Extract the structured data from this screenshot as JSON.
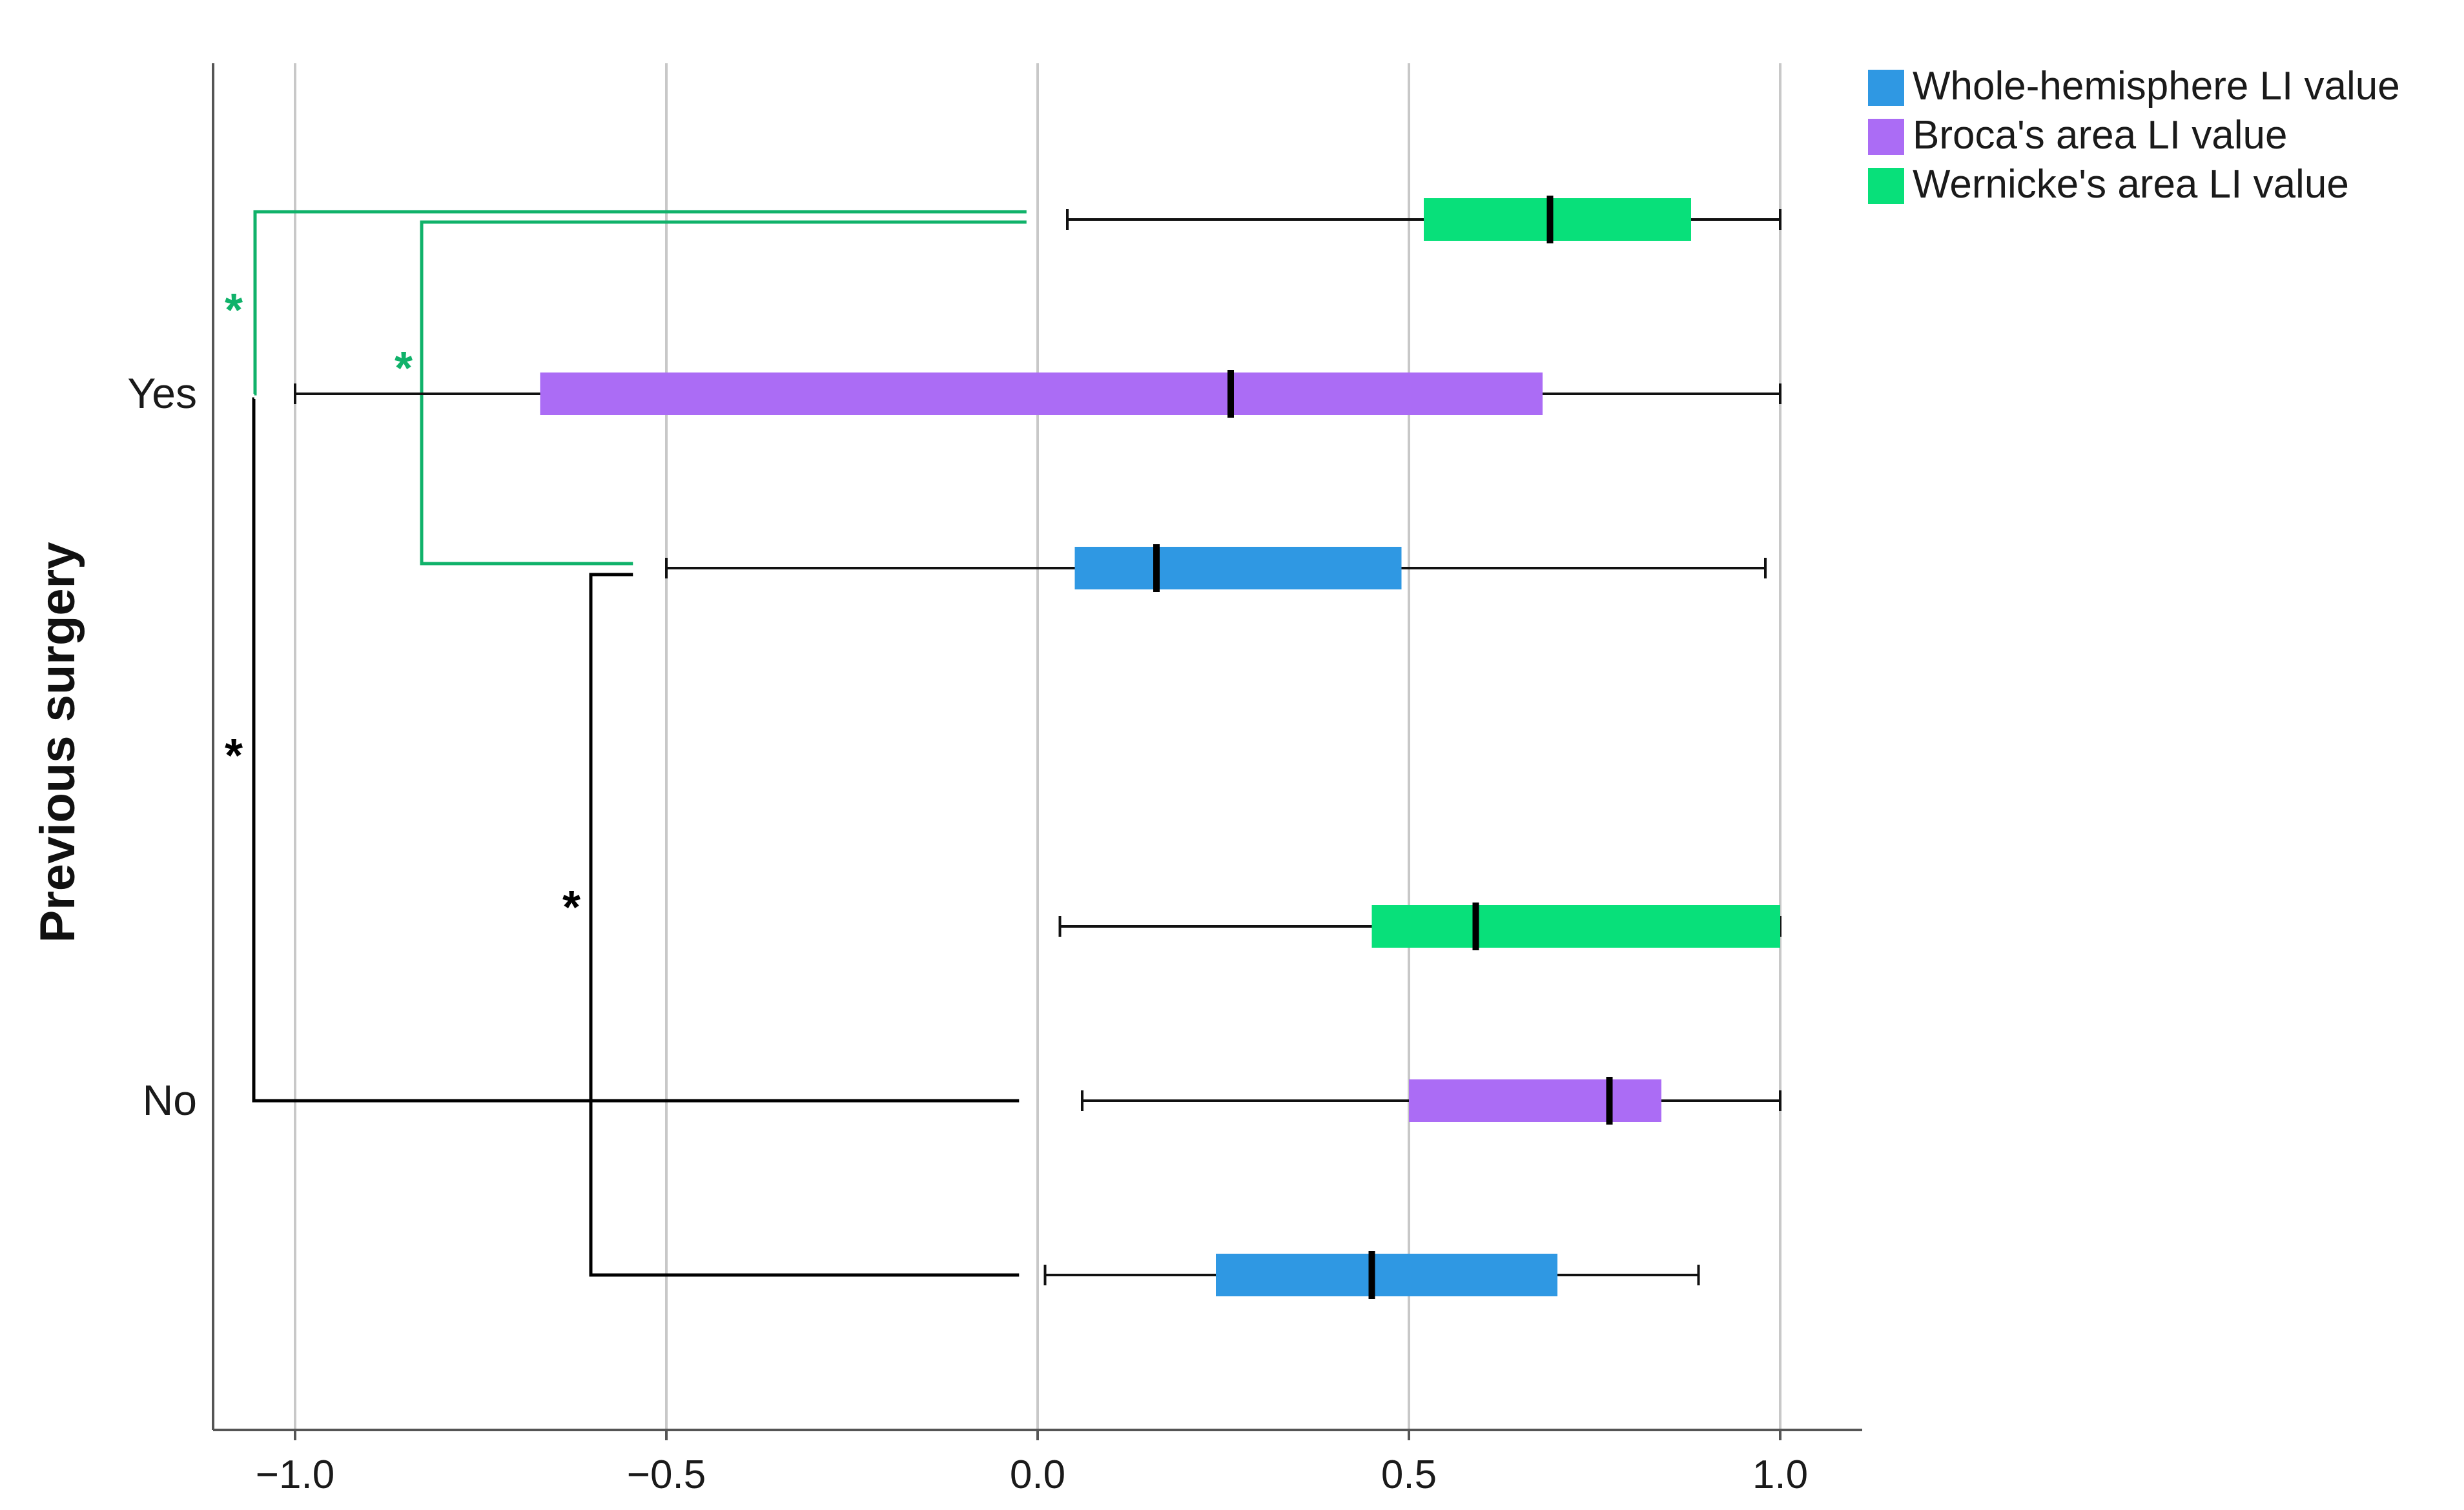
{
  "chart_data": {
    "type": "boxplot",
    "orientation": "horizontal",
    "ylabel": "Previous surgery",
    "xlabel": "",
    "xlim": [
      -1.1,
      1.1
    ],
    "xticks": [
      -1.0,
      -0.5,
      0.0,
      0.5,
      1.0
    ],
    "xtick_labels": [
      "−1.0",
      "−0.5",
      "0.0",
      "0.5",
      "1.0"
    ],
    "grid": "vertical",
    "legend_position": "top-right",
    "categories": [
      "Yes",
      "No"
    ],
    "series": [
      {
        "name": "Whole-hemisphere LI value",
        "color": "#2f98e3",
        "boxes": [
          {
            "category": "Yes",
            "min": -0.5,
            "q1": 0.05,
            "median": 0.16,
            "q3": 0.49,
            "max": 0.98
          },
          {
            "category": "No",
            "min": 0.01,
            "q1": 0.24,
            "median": 0.45,
            "q3": 0.7,
            "max": 0.89
          }
        ]
      },
      {
        "name": "Broca's area LI value",
        "color": "#ab6cf5",
        "boxes": [
          {
            "category": "Yes",
            "min": -1.0,
            "q1": -0.67,
            "median": 0.26,
            "q3": 0.68,
            "max": 1.0
          },
          {
            "category": "No",
            "min": 0.06,
            "q1": 0.5,
            "median": 0.77,
            "q3": 0.84,
            "max": 1.0
          }
        ]
      },
      {
        "name": "Wernicke's area LI value",
        "color": "#08e07a",
        "boxes": [
          {
            "category": "Yes",
            "min": 0.04,
            "q1": 0.52,
            "median": 0.69,
            "q3": 0.88,
            "max": 1.0
          },
          {
            "category": "No",
            "min": 0.03,
            "q1": 0.45,
            "median": 0.59,
            "q3": 1.0,
            "max": 1.0
          }
        ]
      }
    ],
    "annotations": [
      {
        "label": "*",
        "color": "#10b26a",
        "comparison": "Yes: Wernicke's area vs Broca's area"
      },
      {
        "label": "*",
        "color": "#10b26a",
        "comparison": "Yes: Wernicke's area vs Whole-hemisphere"
      },
      {
        "label": "*",
        "color": "#000000",
        "comparison": "Broca's area: Yes vs No"
      },
      {
        "label": "*",
        "color": "#000000",
        "comparison": "Whole-hemisphere: Yes vs No"
      }
    ]
  }
}
